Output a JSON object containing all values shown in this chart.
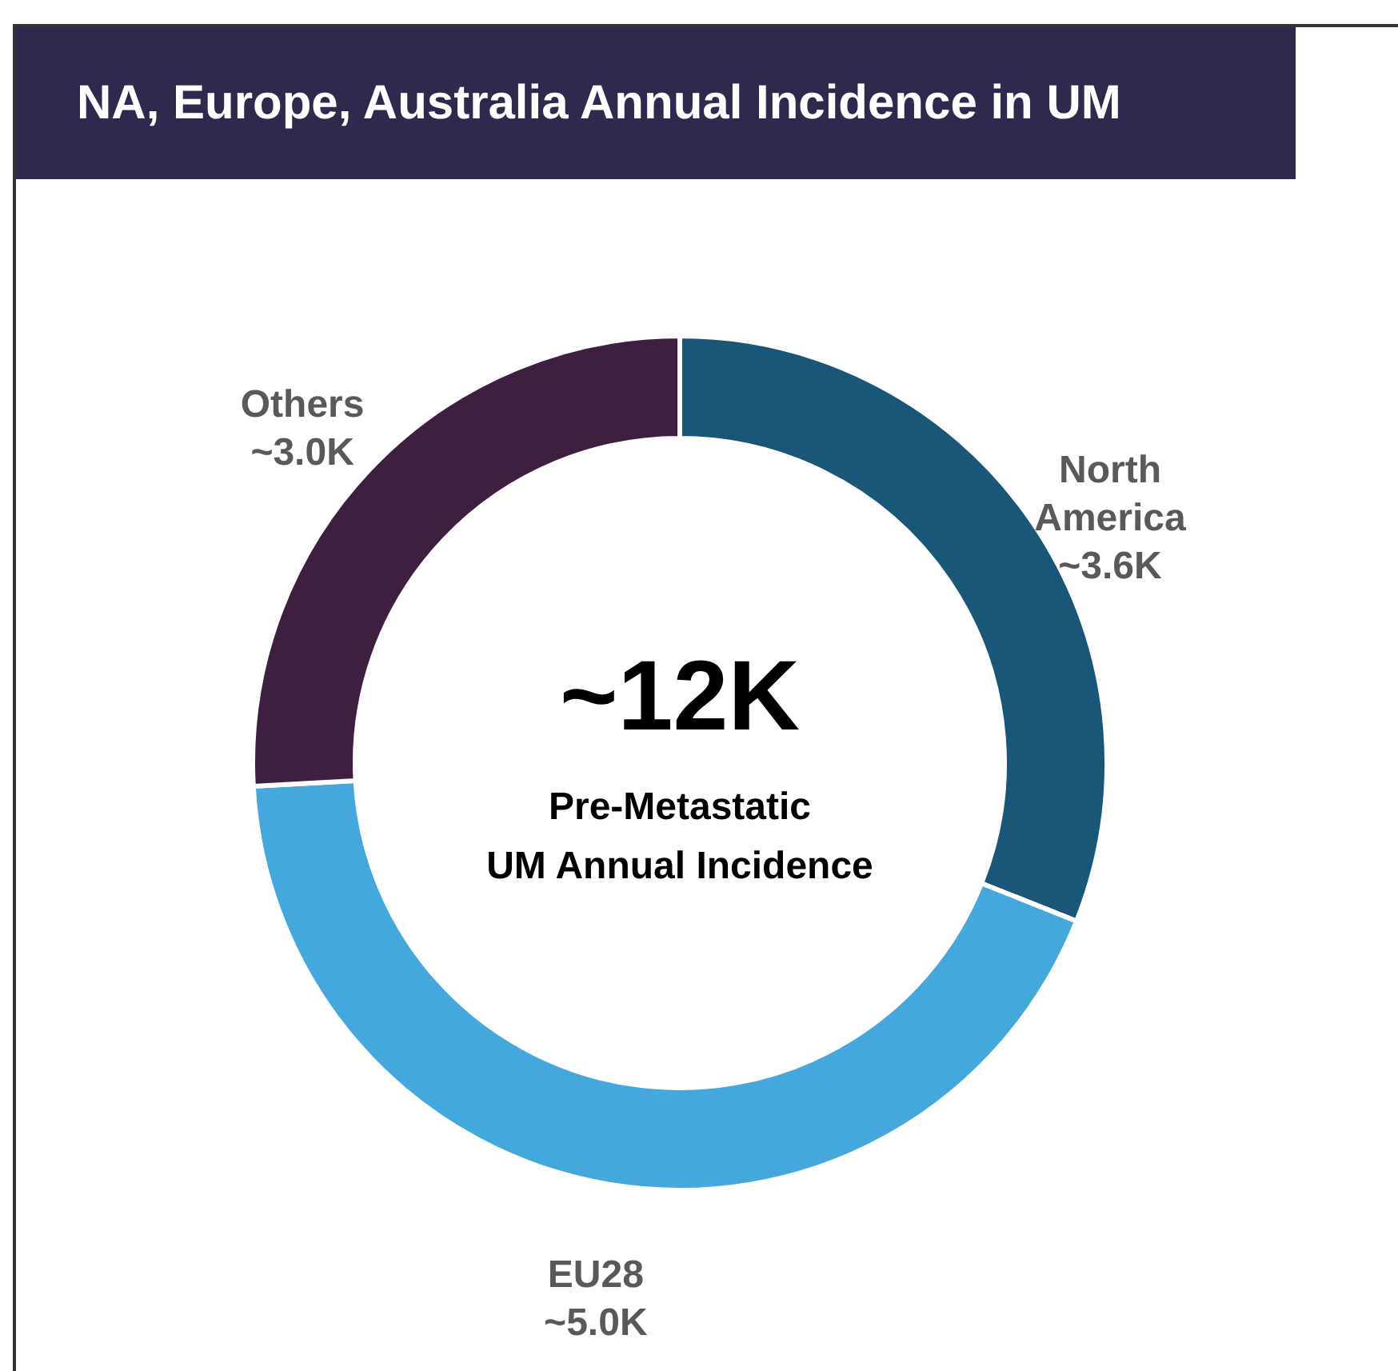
{
  "chart_data": {
    "type": "donut",
    "title": "NA, Europe, Australia Annual Incidence in UM",
    "categories": [
      "North America",
      "EU28",
      "Others"
    ],
    "values": [
      3.6,
      5.0,
      3.0
    ],
    "value_labels": [
      "~3.6K",
      "~5.0K",
      "~3.0K"
    ],
    "colors": [
      "#1a5677",
      "#45a8dc",
      "#3f1f3f"
    ],
    "annotations": [
      "~12K",
      "Pre-Metastatic",
      "UM Annual Incidence"
    ]
  }
}
